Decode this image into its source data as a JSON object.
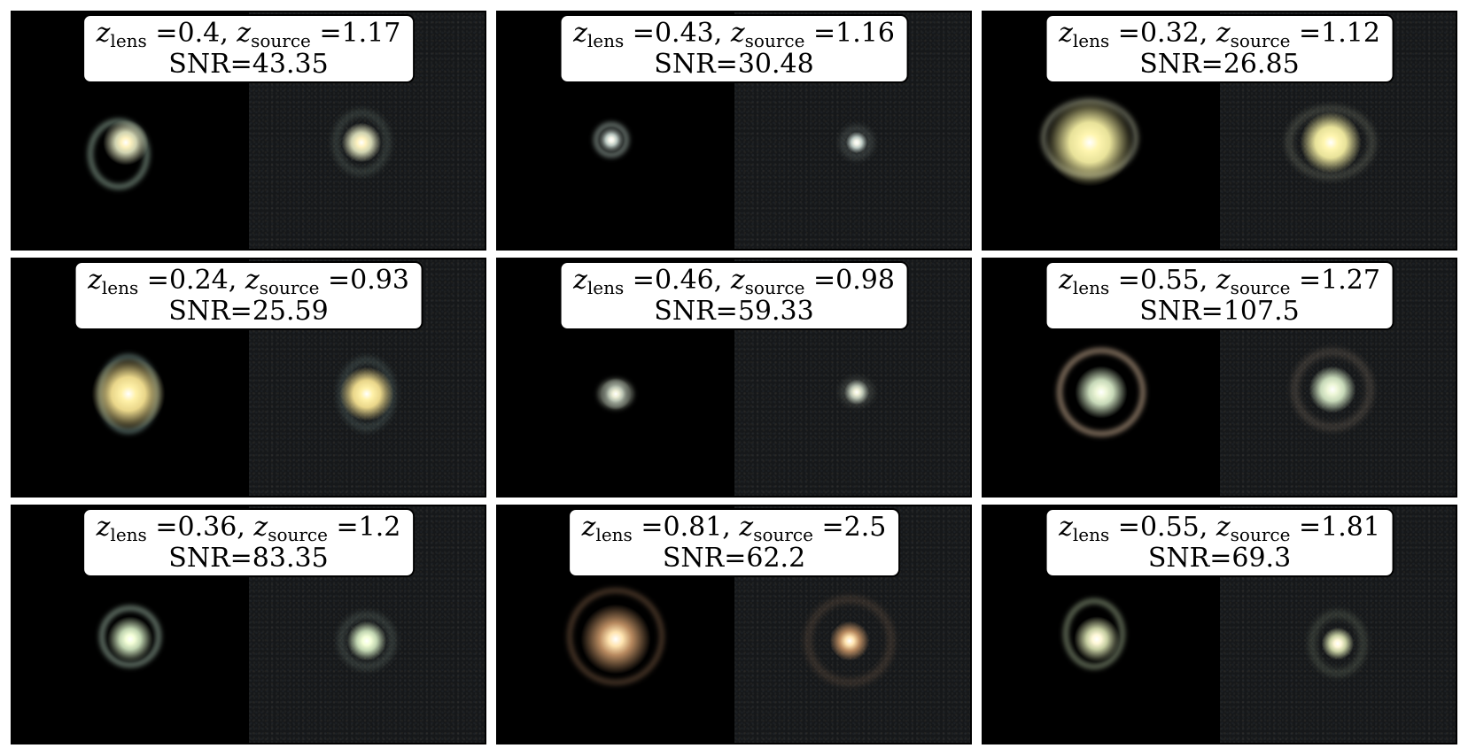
{
  "panels": [
    {
      "z_lens": "0.4",
      "z_source": "1.17",
      "snr": "43.35"
    },
    {
      "z_lens": "0.43",
      "z_source": "1.16",
      "snr": "30.48"
    },
    {
      "z_lens": "0.32",
      "z_source": "1.12",
      "snr": "26.85"
    },
    {
      "z_lens": "0.24",
      "z_source": "0.93",
      "snr": "25.59"
    },
    {
      "z_lens": "0.46",
      "z_source": "0.98",
      "snr": "59.33"
    },
    {
      "z_lens": "0.55",
      "z_source": "1.27",
      "snr": "107.5"
    },
    {
      "z_lens": "0.36",
      "z_source": "1.2",
      "snr": "83.35"
    },
    {
      "z_lens": "0.81",
      "z_source": "2.5",
      "snr": "62.2"
    },
    {
      "z_lens": "0.55",
      "z_source": "1.81",
      "snr": "69.3"
    }
  ],
  "labels": {
    "z": "z",
    "lens_sub": "lens",
    "source_sub": "source",
    "eq": "=",
    "sep": ", ",
    "snr_prefix": "SNR="
  }
}
